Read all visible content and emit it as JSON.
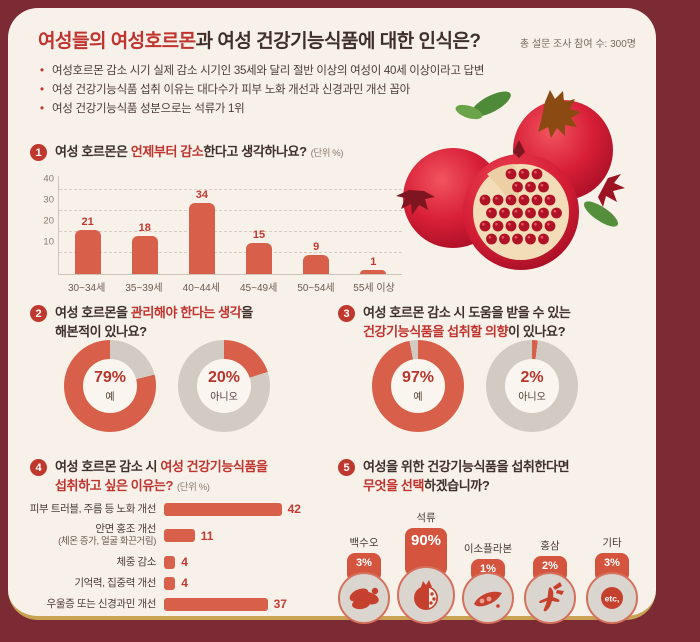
{
  "header": {
    "title_red": "여성들의 여성호르몬",
    "title_rest": "과 여성 건강기능식품에 대한 인식은?",
    "participants": "총 설문 조사 참여 수: 300명"
  },
  "bullets": [
    "여성호르몬 감소 시기 실제 감소 시기인 35세와 달리 절반 이상의 여성이 40세 이상이라고 답변",
    "여성 건강기능식품 섭취 이유는 대다수가 피부 노화 개선과 신경과민 개선 꼽아",
    "여성 건강기능식품 성분으로는 석류가 1위"
  ],
  "questions": {
    "q1": {
      "num": "1",
      "pre": "여성 호르몬은 ",
      "red": "언제부터 감소",
      "post": "한다고 생각하나요?",
      "unit": "(단위 %)"
    },
    "q2": {
      "num": "2",
      "l1pre": "여성 호르몬을 ",
      "l1red": "관리해야 한다는 생각",
      "l1post": "을",
      "l2": "해본적이 있나요?"
    },
    "q3": {
      "num": "3",
      "l1": "여성 호르몬 감소 시 도움을 받을 수 있는",
      "l2red": "건강기능식품을 섭취할 의향",
      "l2post": "이 있나요?"
    },
    "q4": {
      "num": "4",
      "l1pre": "여성 호르몬 감소 시 ",
      "l1red": "여성 건강기능식품을",
      "l2red": "섭취하고 싶은 이유는?",
      "unit": "(단위 %)"
    },
    "q5": {
      "num": "5",
      "l1": "여성을 위한 건강기능식품을 섭취한다면",
      "l2red": "무엇을 선택",
      "l2post": "하겠습니까?"
    }
  },
  "colors": {
    "accent_red": "#c0332e",
    "bar_orange": "#d8604a",
    "donut_gray": "#d2cbc4",
    "maroon_bg": "#7c2b34",
    "card_bg": "#f7f1e9",
    "gold": "#c9a254"
  },
  "chart_data": [
    {
      "type": "bar",
      "title": "여성 호르몬은 언제부터 감소한다고 생각하나요?",
      "unit": "%",
      "categories": [
        "30~34세",
        "35~39세",
        "40~44세",
        "45~49세",
        "50~54세",
        "55세 이상"
      ],
      "values": [
        21,
        18,
        34,
        15,
        9,
        1
      ],
      "ylim": [
        0,
        40
      ],
      "yticks": [
        10,
        20,
        30,
        40
      ],
      "grid": "dashed"
    },
    {
      "type": "pie",
      "title": "여성 호르몬을 관리해야 한다는 생각을 해본적이 있나요?",
      "donuts": [
        {
          "label": "예",
          "value": 79
        },
        {
          "label": "아니오",
          "value": 20
        }
      ]
    },
    {
      "type": "pie",
      "title": "여성 호르몬 감소 시 도움을 받을 수 있는 건강기능식품을 섭취할 의향이 있나요?",
      "donuts": [
        {
          "label": "예",
          "value": 97
        },
        {
          "label": "아니오",
          "value": 2
        }
      ]
    },
    {
      "type": "bar",
      "orientation": "horizontal",
      "title": "여성 호르몬 감소 시 여성 건강기능식품을 섭취하고 싶은 이유는?",
      "unit": "%",
      "rows": [
        {
          "label": "피부 트러블, 주름 등 노화 개선",
          "sub": "",
          "value": 42
        },
        {
          "label": "안면 홍조 개선",
          "sub": "(체온 증가, 얼굴 화끈거림)",
          "value": 11
        },
        {
          "label": "체중 감소",
          "sub": "",
          "value": 4
        },
        {
          "label": "기억력, 집중력 개선",
          "sub": "",
          "value": 4
        },
        {
          "label": "우울증 또는 신경과민 개선",
          "sub": "",
          "value": 37
        }
      ]
    },
    {
      "type": "pictogram",
      "title": "여성을 위한 건강기능식품을 섭취한다면 무엇을 선택하겠습니까?",
      "unit": "%",
      "items": [
        {
          "label": "백수오",
          "value": 3,
          "icon": "baeksuo-root"
        },
        {
          "label": "석류",
          "value": 90,
          "icon": "pomegranate",
          "featured": true
        },
        {
          "label": "이소플라본",
          "value": 1,
          "icon": "isoflavone-soybean"
        },
        {
          "label": "홍삼",
          "value": 2,
          "icon": "red-ginseng"
        },
        {
          "label": "기타",
          "value": 3,
          "icon": "etc",
          "icon_text": "etc,"
        }
      ]
    }
  ]
}
